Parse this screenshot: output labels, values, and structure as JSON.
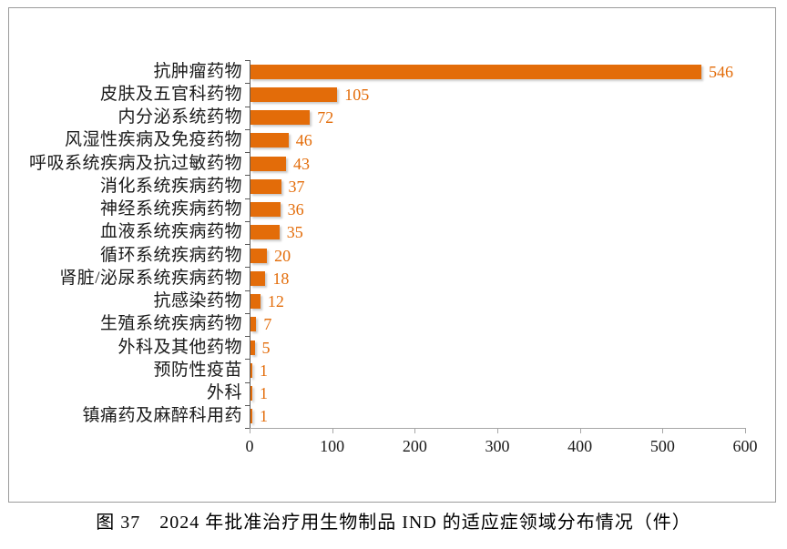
{
  "caption": "图 37　2024 年批准治疗用生物制品 IND 的适应症领域分布情况（件）",
  "colors": {
    "bar": "#E36C09",
    "value_label": "#E36C09",
    "category_label": "#1A1A1A",
    "tick_label": "#1A1A1A",
    "y_axis": "#595959",
    "x_axis": "#A6A6A6",
    "figure_border": "#9B9B9B",
    "background": "#FFFFFF"
  },
  "chart_data": {
    "type": "bar",
    "orientation": "horizontal",
    "title": "",
    "xlabel": "",
    "ylabel": "",
    "xlim": [
      0,
      600
    ],
    "x_ticks": [
      0,
      100,
      200,
      300,
      400,
      500,
      600
    ],
    "grid": false,
    "legend": null,
    "data_labels": true,
    "categories": [
      "抗肿瘤药物",
      "皮肤及五官科药物",
      "内分泌系统药物",
      "风湿性疾病及免疫药物",
      "呼吸系统疾病及抗过敏药物",
      "消化系统疾病药物",
      "神经系统疾病药物",
      "血液系统疾病药物",
      "循环系统疾病药物",
      "肾脏/泌尿系统疾病药物",
      "抗感染药物",
      "生殖系统疾病药物",
      "外科及其他药物",
      "预防性疫苗",
      "外科",
      "镇痛药及麻醉科用药"
    ],
    "values": [
      546,
      105,
      72,
      46,
      43,
      37,
      36,
      35,
      20,
      18,
      12,
      7,
      5,
      1,
      1,
      1
    ]
  }
}
